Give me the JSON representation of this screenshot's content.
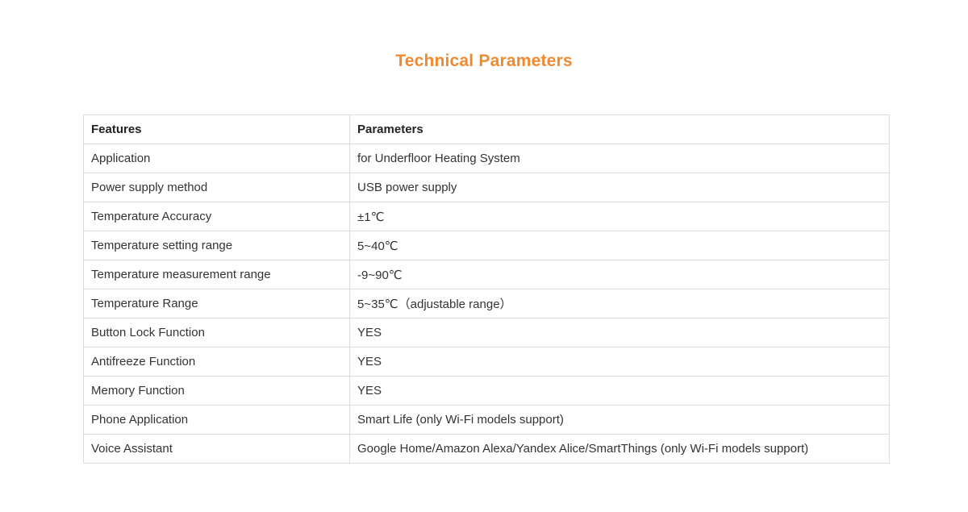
{
  "page": {
    "title": "Technical Parameters",
    "title_color": "#F1892D",
    "border_color": "#dcdcdc",
    "text_color": "#333333"
  },
  "table": {
    "headers": [
      "Features",
      "Parameters"
    ],
    "rows": [
      {
        "feature": "Application",
        "parameter": "for Underfloor Heating System"
      },
      {
        "feature": "Power supply method",
        "parameter": "USB power supply"
      },
      {
        "feature": "Temperature Accuracy",
        "parameter": "±1℃"
      },
      {
        "feature": "Temperature setting range",
        "parameter": "5~40℃"
      },
      {
        "feature": "Temperature measurement range",
        "parameter": "-9~90℃"
      },
      {
        "feature": "Temperature Range",
        "parameter": "5~35℃（adjustable range）"
      },
      {
        "feature": "Button Lock Function",
        "parameter": "YES"
      },
      {
        "feature": "Antifreeze Function",
        "parameter": "YES"
      },
      {
        "feature": "Memory Function",
        "parameter": "YES"
      },
      {
        "feature": "Phone Application",
        "parameter": "Smart Life (only Wi-Fi models support)"
      },
      {
        "feature": "Voice Assistant",
        "parameter": "Google Home/Amazon Alexa/Yandex Alice/SmartThings (only Wi-Fi models support)"
      }
    ]
  }
}
